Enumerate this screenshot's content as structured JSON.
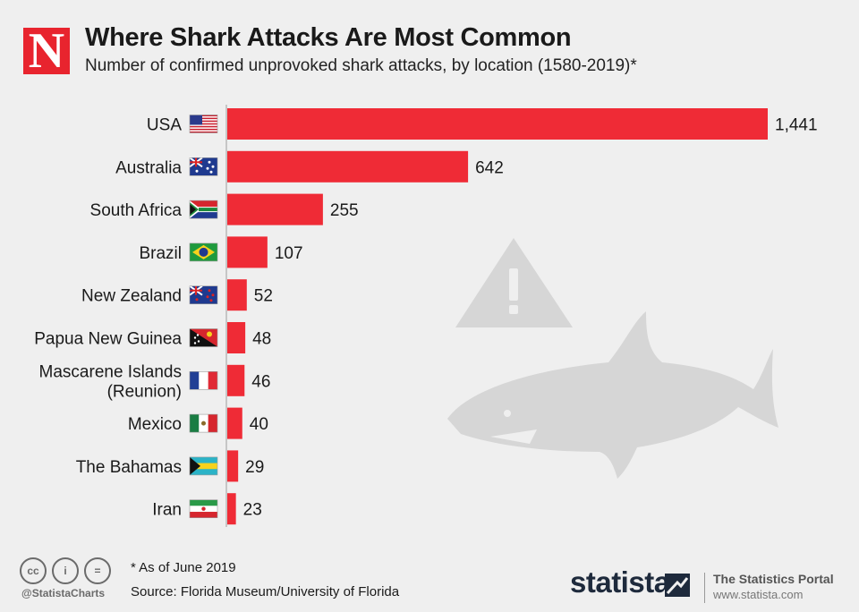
{
  "header": {
    "logo_letter": "N",
    "title": "Where Shark Attacks Are Most Common",
    "subtitle": "Number of confirmed unprovoked shark attacks, by location (1580-2019)*"
  },
  "chart_data": {
    "type": "bar",
    "orientation": "horizontal",
    "title": "Where Shark Attacks Are Most Common",
    "subtitle": "Number of confirmed unprovoked shark attacks, by location (1580-2019)*",
    "categories": [
      {
        "label": "USA",
        "flag": "usa"
      },
      {
        "label": "Australia",
        "flag": "australia"
      },
      {
        "label": "South Africa",
        "flag": "south-africa"
      },
      {
        "label": "Brazil",
        "flag": "brazil"
      },
      {
        "label": "New Zealand",
        "flag": "new-zealand"
      },
      {
        "label": "Papua New Guinea",
        "flag": "papua-new-guinea"
      },
      {
        "label": "Mascarene Islands\n(Reunion)",
        "flag": "france"
      },
      {
        "label": "Mexico",
        "flag": "mexico"
      },
      {
        "label": "The Bahamas",
        "flag": "bahamas"
      },
      {
        "label": "Iran",
        "flag": "iran"
      }
    ],
    "values": [
      1441,
      642,
      255,
      107,
      52,
      48,
      46,
      40,
      29,
      23
    ],
    "value_labels": [
      "1,441",
      "642",
      "255",
      "107",
      "52",
      "48",
      "46",
      "40",
      "29",
      "23"
    ],
    "xlim": [
      0,
      1441
    ],
    "bar_color": "#ef2b36",
    "grid": false
  },
  "footer": {
    "cc_icons": [
      "creative-commons-icon",
      "attribution-icon",
      "no-derivatives-icon"
    ],
    "cc_glyphs": [
      "cc",
      "i",
      "="
    ],
    "handle": "@StatistaCharts",
    "note": "* As of June 2019",
    "source": "Source: Florida Museum/University of Florida",
    "brand": "statista",
    "portal_title": "The Statistics Portal",
    "portal_url": "www.statista.com"
  },
  "colors": {
    "accent": "#ef2b36",
    "logo_red": "#e8242e",
    "background": "#efefef",
    "shark_gray": "#d6d6d6",
    "brand_navy": "#1e2a3c"
  }
}
